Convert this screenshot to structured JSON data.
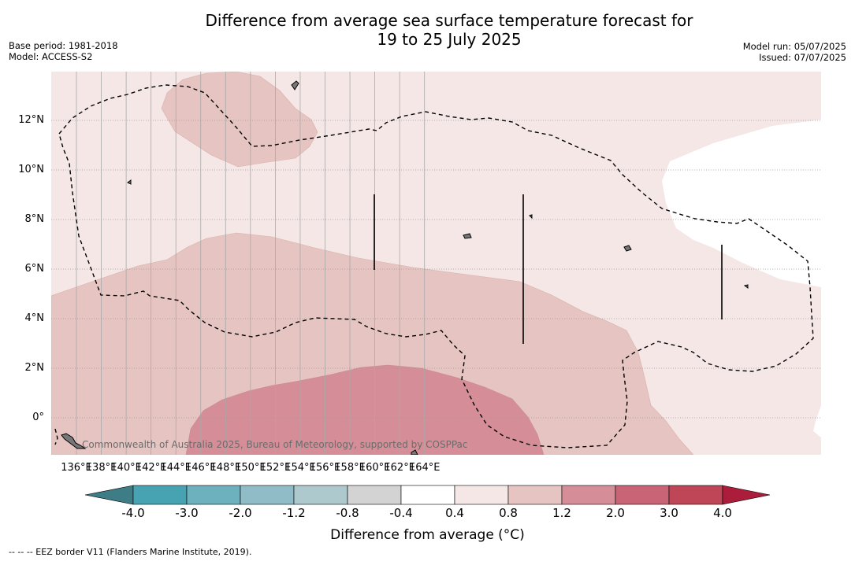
{
  "title": {
    "line1": "Difference from average sea surface temperature forecast for",
    "line2": "19 to 25 July 2025"
  },
  "meta": {
    "base_period": "Base period: 1981-2018",
    "model": "Model: ACCESS-S2",
    "model_run": "Model run: 05/07/2025",
    "issued": "Issued: 07/07/2025"
  },
  "map": {
    "lon_ticks": [
      "136°E",
      "138°E",
      "140°E",
      "142°E",
      "144°E",
      "146°E",
      "148°E",
      "150°E",
      "152°E",
      "154°E",
      "156°E",
      "158°E",
      "160°E",
      "162°E",
      "164°E"
    ],
    "lat_ticks": [
      "12°N",
      "10°N",
      "8°N",
      "6°N",
      "4°N",
      "2°N",
      "0°"
    ],
    "copyright": "Commonwealth of Australia 2025, Bureau of Meteorology, supported by COSPPac",
    "colors": {
      "band_0_4_0_8": "#f4e7e6",
      "band_0_8_1_2": "#e6c4c1",
      "band_1_2_2_0": "#d58e98",
      "white_band": "#ffffff"
    }
  },
  "colorbar": {
    "title": "Difference from average (°C)",
    "labels": [
      "-4.0",
      "-3.0",
      "-2.0",
      "-1.2",
      "-0.8",
      "-0.4",
      "0.4",
      "0.8",
      "1.2",
      "2.0",
      "3.0",
      "4.0"
    ],
    "colors": [
      "#3f7d86",
      "#47a2b2",
      "#6db0be",
      "#8fbcc7",
      "#adc9cd",
      "#d3d3d3",
      "#ffffff",
      "#f4e7e6",
      "#e6c4c1",
      "#d58e98",
      "#c86475",
      "#be4656",
      "#ac1d3b"
    ]
  },
  "footnote": "--  --  -- EEZ border V11 (Flanders Marine Institute, 2019)."
}
